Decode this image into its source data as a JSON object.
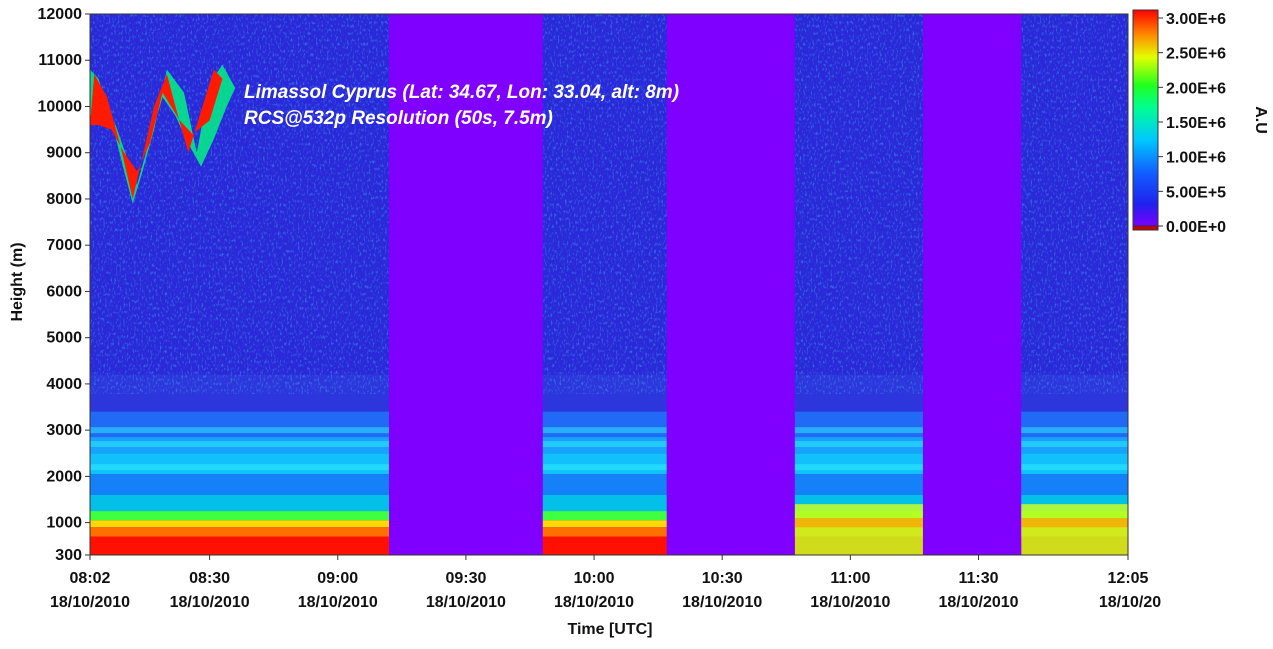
{
  "chart_data": {
    "type": "heatmap",
    "title_line1": "Limassol Cyprus (Lat: 34.67, Lon: 33.04, alt: 8m)",
    "title_line2": "RCS@532p  Resolution (50s, 7.5m)",
    "xlabel": "Time [UTC]",
    "ylabel": "Height (m)",
    "colorbar_label": "A.U",
    "xlim": [
      "08:02",
      "12:05"
    ],
    "ylim": [
      300,
      12000
    ],
    "x_ticks": [
      {
        "time": "08:02",
        "date": "18/10/2010"
      },
      {
        "time": "08:30",
        "date": "18/10/2010"
      },
      {
        "time": "09:00",
        "date": "18/10/2010"
      },
      {
        "time": "09:30",
        "date": "18/10/2010"
      },
      {
        "time": "10:00",
        "date": "18/10/2010"
      },
      {
        "time": "10:30",
        "date": "18/10/2010"
      },
      {
        "time": "11:00",
        "date": "18/10/2010"
      },
      {
        "time": "11:30",
        "date": "18/10/2010"
      },
      {
        "time": "12:05",
        "date": "18/10/20"
      }
    ],
    "y_ticks": [
      "12000",
      "11000",
      "10000",
      "9000",
      "8000",
      "7000",
      "6000",
      "5000",
      "4000",
      "3000",
      "2000",
      "1000",
      "300"
    ],
    "y_tick_values": [
      12000,
      11000,
      10000,
      9000,
      8000,
      7000,
      6000,
      5000,
      4000,
      3000,
      2000,
      1000,
      300
    ],
    "colorbar_ticks": [
      "3.00E+6",
      "2.50E+6",
      "2.00E+6",
      "1.50E+6",
      "1.00E+6",
      "5.00E+5",
      "0.00E+0"
    ],
    "colorbar_values": [
      3000000,
      2500000,
      2000000,
      1500000,
      1000000,
      500000,
      0
    ],
    "colorbar_range": [
      0,
      3000000
    ],
    "no_data_intervals": [
      {
        "start": "09:12",
        "end": "09:48"
      },
      {
        "start": "10:17",
        "end": "10:47"
      },
      {
        "start": "11:17",
        "end": "11:40"
      }
    ],
    "features": {
      "boundary_layer_top_m": 1200,
      "residual_layers_m": [
        2200,
        2700,
        3000
      ],
      "cirrus_cloud": {
        "start": "08:02",
        "end": "08:38",
        "base_m": 8000,
        "top_m": 10800
      }
    },
    "colors": {
      "no_data": "#7f00ff",
      "background_low": "#2a28d8",
      "high": "#ff0000"
    }
  }
}
